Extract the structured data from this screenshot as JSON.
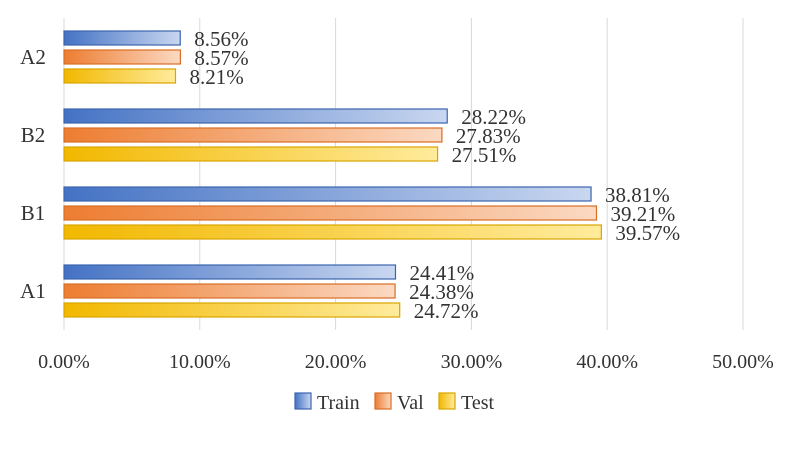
{
  "chart_data": {
    "type": "bar",
    "orientation": "horizontal",
    "categories": [
      "A1",
      "B1",
      "B2",
      "A2"
    ],
    "series": [
      {
        "name": "Train",
        "values": [
          24.41,
          38.81,
          28.22,
          8.56
        ],
        "labels": [
          "24.41%",
          "38.81%",
          "28.22%",
          "8.56%"
        ],
        "color_dark": "#4472c4",
        "color_light": "#c9d7f0",
        "border": "#3b64ad"
      },
      {
        "name": "Val",
        "values": [
          24.38,
          39.21,
          27.83,
          8.57
        ],
        "labels": [
          "24.38%",
          "39.21%",
          "27.83%",
          "8.57%"
        ],
        "color_dark": "#ed7d31",
        "color_light": "#fbd9c2",
        "border": "#d86e26"
      },
      {
        "name": "Test",
        "values": [
          24.72,
          39.57,
          27.51,
          8.21
        ],
        "labels": [
          "24.72%",
          "39.57%",
          "27.51%",
          "8.21%"
        ],
        "color_dark": "#f2b800",
        "color_light": "#ffeb9c",
        "border": "#d9a500"
      }
    ],
    "xlim": [
      0,
      50
    ],
    "x_ticks": [
      "0.00%",
      "10.00%",
      "20.00%",
      "30.00%",
      "40.00%",
      "50.00%"
    ],
    "x_tick_values": [
      0,
      10,
      20,
      30,
      40,
      50
    ],
    "grid": "vertical",
    "legend": "bottom"
  }
}
